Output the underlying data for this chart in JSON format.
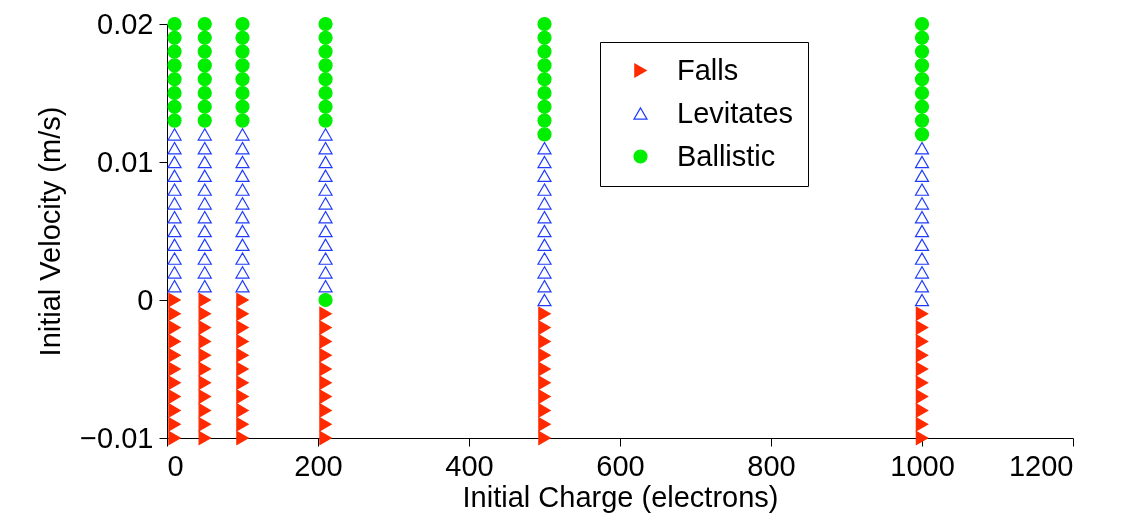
{
  "chart_data": {
    "type": "scatter",
    "xlabel": "Initial Charge (electrons)",
    "ylabel": "Initial Velocity (m/s)",
    "xlim": [
      0,
      1200
    ],
    "xticks": [
      0,
      200,
      400,
      600,
      800,
      1000,
      1200
    ],
    "ylim": [
      -0.01,
      0.02
    ],
    "yticks": [
      -0.01,
      0,
      0.01,
      0.02
    ],
    "grid": false,
    "legend": "top right",
    "series": [
      {
        "name": "Falls",
        "color": "#ff2a00",
        "marker": "triangle-right",
        "x": [
          10,
          10,
          10,
          10,
          10,
          10,
          10,
          10,
          10,
          10,
          10,
          50,
          50,
          50,
          50,
          50,
          50,
          50,
          50,
          50,
          50,
          50,
          100,
          100,
          100,
          100,
          100,
          100,
          100,
          100,
          100,
          100,
          100,
          210,
          210,
          210,
          210,
          210,
          210,
          210,
          210,
          210,
          210,
          500,
          500,
          500,
          500,
          500,
          500,
          500,
          500,
          500,
          500,
          1000,
          1000,
          1000,
          1000,
          1000,
          1000,
          1000,
          1000,
          1000,
          1000
        ],
        "values": [
          0,
          -0.001,
          -0.002,
          -0.003,
          -0.004,
          -0.005,
          -0.006,
          -0.007,
          -0.008,
          -0.009,
          -0.01,
          0,
          -0.001,
          -0.002,
          -0.003,
          -0.004,
          -0.005,
          -0.006,
          -0.007,
          -0.008,
          -0.009,
          -0.01,
          0,
          -0.001,
          -0.002,
          -0.003,
          -0.004,
          -0.005,
          -0.006,
          -0.007,
          -0.008,
          -0.009,
          -0.01,
          -0.001,
          -0.002,
          -0.003,
          -0.004,
          -0.005,
          -0.006,
          -0.007,
          -0.008,
          -0.009,
          -0.01,
          -0.001,
          -0.002,
          -0.003,
          -0.004,
          -0.005,
          -0.006,
          -0.007,
          -0.008,
          -0.009,
          -0.01,
          -0.001,
          -0.002,
          -0.003,
          -0.004,
          -0.005,
          -0.006,
          -0.007,
          -0.008,
          -0.009,
          -0.01
        ]
      },
      {
        "name": "Levitates",
        "color": "#1f3cff",
        "marker": "triangle",
        "x": [
          10,
          10,
          10,
          10,
          10,
          10,
          10,
          10,
          10,
          10,
          10,
          10,
          50,
          50,
          50,
          50,
          50,
          50,
          50,
          50,
          50,
          50,
          50,
          50,
          100,
          100,
          100,
          100,
          100,
          100,
          100,
          100,
          100,
          100,
          100,
          100,
          210,
          210,
          210,
          210,
          210,
          210,
          210,
          210,
          210,
          210,
          210,
          210,
          500,
          500,
          500,
          500,
          500,
          500,
          500,
          500,
          500,
          500,
          500,
          500,
          1000,
          1000,
          1000,
          1000,
          1000,
          1000,
          1000,
          1000,
          1000,
          1000,
          1000,
          1000
        ],
        "values": [
          0.001,
          0.002,
          0.003,
          0.004,
          0.005,
          0.006,
          0.007,
          0.008,
          0.009,
          0.01,
          0.011,
          0.012,
          0.001,
          0.002,
          0.003,
          0.004,
          0.005,
          0.006,
          0.007,
          0.008,
          0.009,
          0.01,
          0.011,
          0.012,
          0.001,
          0.002,
          0.003,
          0.004,
          0.005,
          0.006,
          0.007,
          0.008,
          0.009,
          0.01,
          0.011,
          0.012,
          0.001,
          0.002,
          0.003,
          0.004,
          0.005,
          0.006,
          0.007,
          0.008,
          0.009,
          0.01,
          0.011,
          0.012,
          0,
          0.001,
          0.002,
          0.003,
          0.004,
          0.005,
          0.006,
          0.007,
          0.008,
          0.009,
          0.01,
          0.011,
          0,
          0.001,
          0.002,
          0.003,
          0.004,
          0.005,
          0.006,
          0.007,
          0.008,
          0.009,
          0.01,
          0.011
        ]
      },
      {
        "name": "Ballistic",
        "color": "#00ee00",
        "marker": "circle",
        "x": [
          10,
          10,
          10,
          10,
          10,
          10,
          10,
          10,
          50,
          50,
          50,
          50,
          50,
          50,
          50,
          50,
          100,
          100,
          100,
          100,
          100,
          100,
          100,
          100,
          210,
          210,
          210,
          210,
          210,
          210,
          210,
          210,
          210,
          500,
          500,
          500,
          500,
          500,
          500,
          500,
          500,
          500,
          1000,
          1000,
          1000,
          1000,
          1000,
          1000,
          1000,
          1000,
          1000
        ],
        "values": [
          0.013,
          0.014,
          0.015,
          0.016,
          0.017,
          0.018,
          0.019,
          0.02,
          0.013,
          0.014,
          0.015,
          0.016,
          0.017,
          0.018,
          0.019,
          0.02,
          0.013,
          0.014,
          0.015,
          0.016,
          0.017,
          0.018,
          0.019,
          0.02,
          0,
          0.013,
          0.014,
          0.015,
          0.016,
          0.017,
          0.018,
          0.019,
          0.02,
          0.012,
          0.013,
          0.014,
          0.015,
          0.016,
          0.017,
          0.018,
          0.019,
          0.02,
          0.012,
          0.013,
          0.014,
          0.015,
          0.016,
          0.017,
          0.018,
          0.019,
          0.02
        ]
      }
    ]
  }
}
